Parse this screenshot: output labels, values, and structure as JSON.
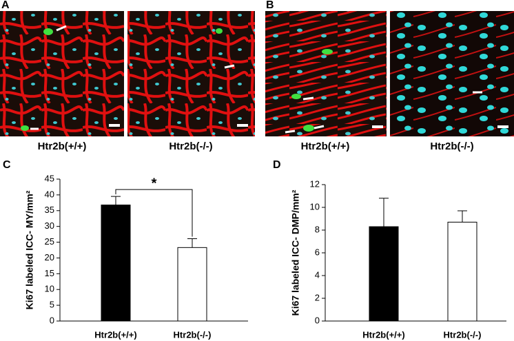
{
  "image_panels": [
    {
      "label": "A",
      "captions": [
        "Htr2b(+/+)",
        "Htr2b(-/-)"
      ]
    },
    {
      "label": "B",
      "captions": [
        "Htr2b(+/+)",
        "Htr2b(-/-)"
      ]
    }
  ],
  "chart_data": [
    {
      "type": "bar",
      "panel_label": "C",
      "ylabel": "Ki67 labeled ICC- MY/mm²",
      "categories": [
        "Htr2b(+/+)",
        "Htr2b(-/-)"
      ],
      "values": [
        36.8,
        23.3
      ],
      "errors": [
        2.7,
        2.8
      ],
      "colors": [
        "#000000",
        "#ffffff"
      ],
      "ylim": [
        0,
        45
      ],
      "yticks": [
        0,
        5,
        10,
        15,
        20,
        25,
        30,
        35,
        40,
        45
      ],
      "annotation": "*"
    },
    {
      "type": "bar",
      "panel_label": "D",
      "ylabel": "Ki67 labeled ICC- DMP/mm²",
      "categories": [
        "Htr2b(+/+)",
        "Htr2b(-/-)"
      ],
      "values": [
        8.3,
        8.7
      ],
      "errors": [
        2.5,
        1.0
      ],
      "colors": [
        "#000000",
        "#ffffff"
      ],
      "ylim": [
        0,
        12
      ],
      "yticks": [
        0,
        2,
        4,
        6,
        8,
        10,
        12
      ]
    }
  ]
}
